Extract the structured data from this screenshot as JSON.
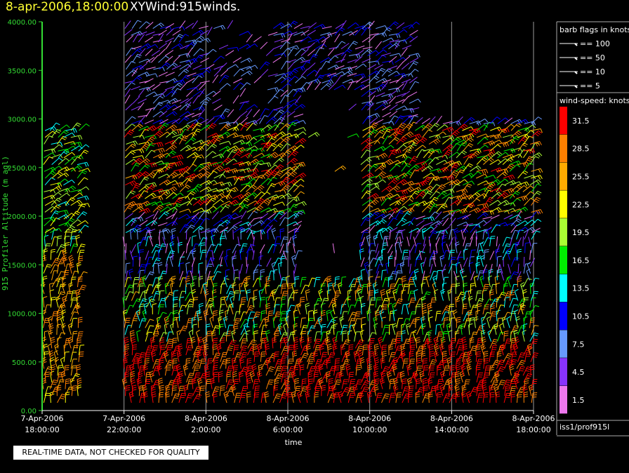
{
  "header": {
    "datetime": "8-apr-2006,18:00:00",
    "title": "XYWind:915winds."
  },
  "notice": "REAL-TIME DATA, NOT CHECKED FOR QUALITY",
  "legend": {
    "flags_title": "barb flags in knots",
    "flags": [
      "== 100",
      "== 50",
      "== 10",
      "== 5"
    ],
    "speed_title": "wind-speed: knots",
    "speed_labels": [
      "31.5",
      "28.5",
      "25.5",
      "22.5",
      "19.5",
      "16.5",
      "13.5",
      "10.5",
      "7.5",
      "4.5",
      "1.5"
    ],
    "speed_colors": [
      "#ff0000",
      "#ff8000",
      "#ffaa00",
      "#ffff00",
      "#aaff33",
      "#00ee00",
      "#00ffff",
      "#0000ff",
      "#6699ff",
      "#8833ff",
      "#ee77ee"
    ],
    "source": "iss1/prof915l"
  },
  "chart_data": {
    "type": "wind-barb",
    "xlabel": "time",
    "ylabel": "915 Profiler Altitude (m agl)",
    "ylim": [
      0,
      4000
    ],
    "yticks": [
      "0.00",
      "500.00",
      "1000.00",
      "1500.00",
      "2000.00",
      "2500.00",
      "3000.00",
      "3500.00",
      "4000.00"
    ],
    "yvalues": [
      0,
      500,
      1000,
      1500,
      2000,
      2500,
      3000,
      3500,
      4000
    ],
    "xticks": [
      {
        "date": "7-Apr-2006",
        "time": "18:00:00",
        "hours": 0
      },
      {
        "date": "7-Apr-2006",
        "time": "22:00:00",
        "hours": 4
      },
      {
        "date": "8-Apr-2006",
        "time": "2:00:00",
        "hours": 8
      },
      {
        "date": "8-Apr-2006",
        "time": "6:00:00",
        "hours": 12
      },
      {
        "date": "8-Apr-2006",
        "time": "10:00:00",
        "hours": 16
      },
      {
        "date": "8-Apr-2006",
        "time": "14:00:00",
        "hours": 20
      },
      {
        "date": "8-Apr-2006",
        "time": "18:00:00",
        "hours": 24
      }
    ],
    "xlim_hours": [
      0,
      24
    ],
    "grid": "vertical lines at x ticks"
  }
}
